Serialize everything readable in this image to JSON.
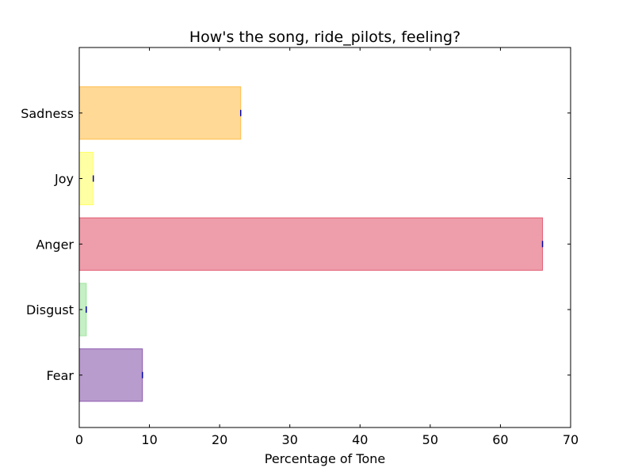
{
  "chart_data": {
    "type": "bar",
    "orientation": "horizontal",
    "title": "How's the song, ride_pilots, feeling?",
    "xlabel": "Percentage of Tone",
    "ylabel": "",
    "xlim": [
      0,
      70
    ],
    "xticks": [
      0,
      10,
      20,
      30,
      40,
      50,
      60,
      70
    ],
    "grid": false,
    "categories": [
      "Fear",
      "Disgust",
      "Anger",
      "Joy",
      "Sadness"
    ],
    "values": [
      9,
      1,
      66,
      2,
      23
    ],
    "colors": [
      "#8b5aae",
      "#9fe59f",
      "#e25c72",
      "#ffff66",
      "#ffbf4f"
    ],
    "error_marker_color": "#0000aa"
  }
}
